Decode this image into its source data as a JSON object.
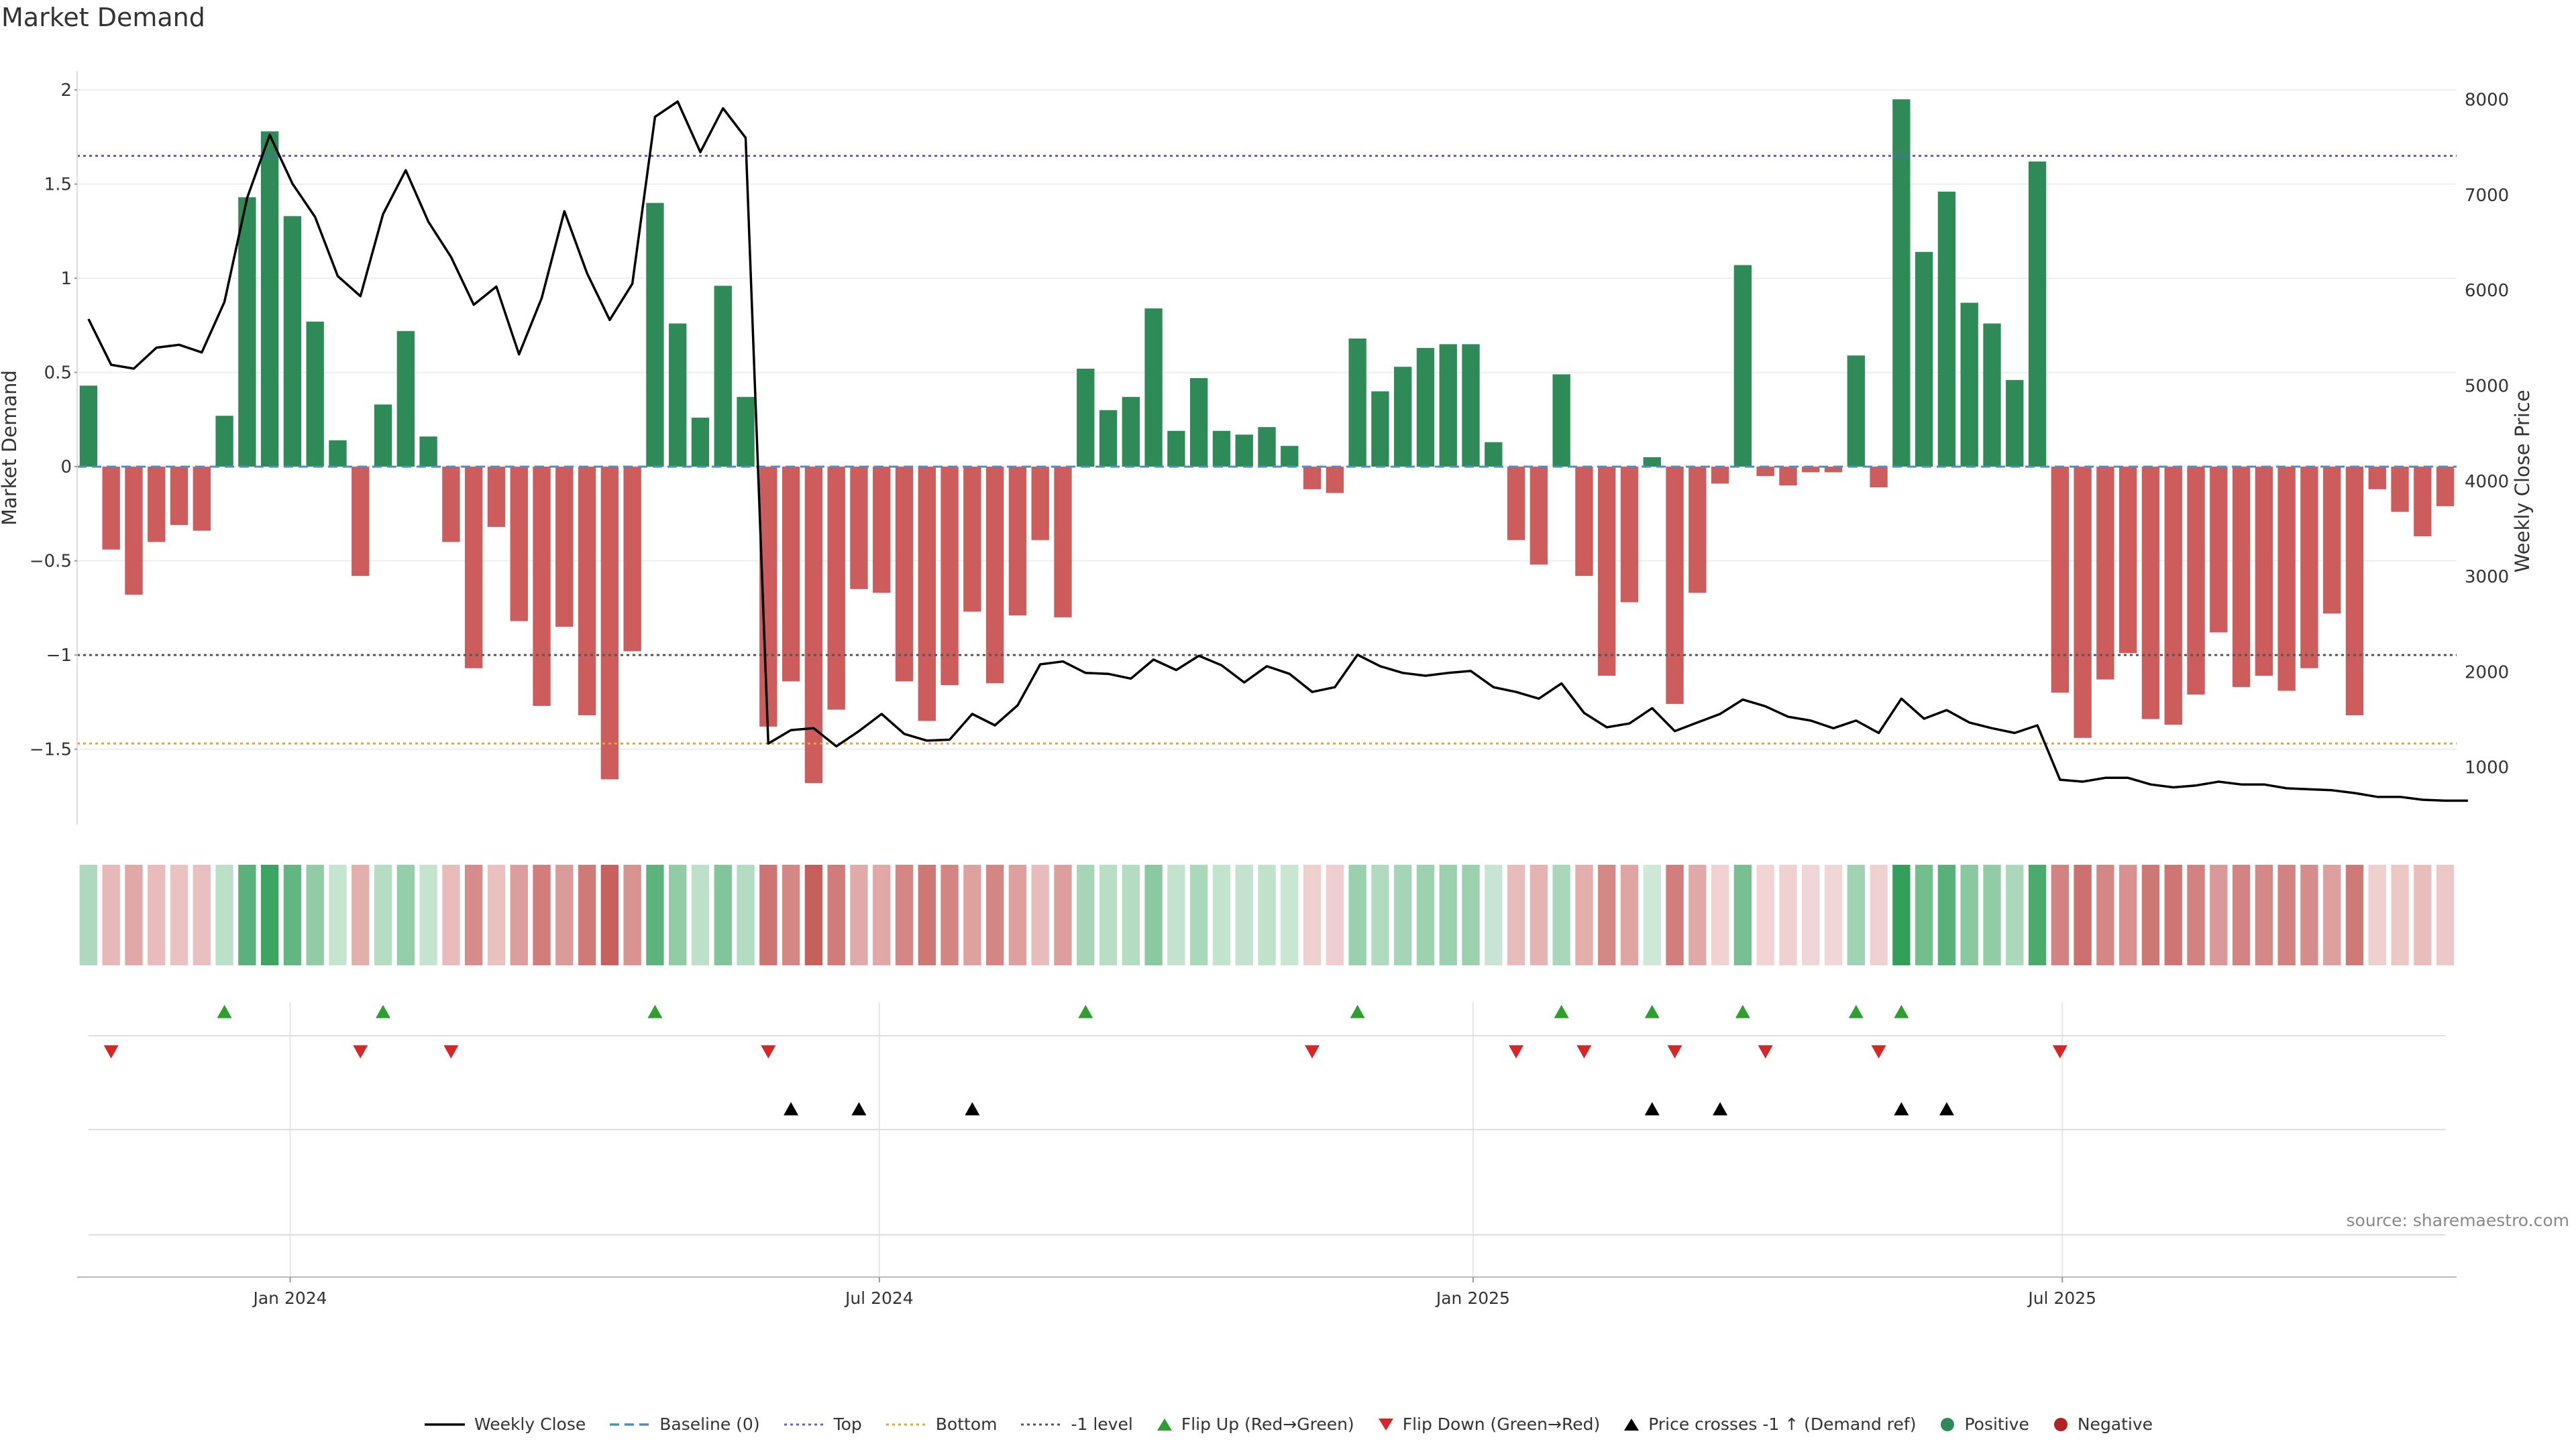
{
  "page_title": "Market Demand",
  "source": "source: sharemaestro.com",
  "colors": {
    "positive": "#2e8b57",
    "negative": "#cd5c5c",
    "price": "#000000",
    "top": "#6a5acd",
    "bottom": "#e6a23c",
    "minus_one": "#555555",
    "baseline": "#4a90c4",
    "flip_up": "#2ca02c",
    "flip_down": "#d62728",
    "cross": "#000000"
  },
  "legend": [
    {
      "key": "weekly_close",
      "label": "Weekly Close",
      "symbol": "line",
      "color": "#000000"
    },
    {
      "key": "baseline",
      "label": "Baseline (0)",
      "symbol": "dash",
      "color": "#4a90c4"
    },
    {
      "key": "top",
      "label": "Top",
      "symbol": "dot",
      "color": "#6a5acd"
    },
    {
      "key": "bottom",
      "label": "Bottom",
      "symbol": "dot",
      "color": "#e6a23c"
    },
    {
      "key": "minus_one",
      "label": "-1 level",
      "symbol": "dot",
      "color": "#555555"
    },
    {
      "key": "flip_up",
      "label": "Flip Up (Red→Green)",
      "symbol": "tri-up",
      "color": "#2ca02c"
    },
    {
      "key": "flip_down",
      "label": "Flip Down (Green→Red)",
      "symbol": "tri-down",
      "color": "#d62728"
    },
    {
      "key": "cross",
      "label": "Price crosses -1 ↑ (Demand ref)",
      "symbol": "tri-up",
      "color": "#000000"
    },
    {
      "key": "positive",
      "label": "Positive",
      "symbol": "circle",
      "color": "#2e8b57"
    },
    {
      "key": "negative",
      "label": "Negative",
      "symbol": "circle",
      "color": "#b22222"
    }
  ],
  "chart_data": {
    "type": "bar",
    "title": "Market Demand",
    "ylabel": "Market Demand",
    "y2label": "Weekly Close Price",
    "ylim": [
      -1.9,
      2.1
    ],
    "y2lim": [
      400,
      8300
    ],
    "yticks": [
      -1.5,
      -1,
      -0.5,
      0,
      0.5,
      1,
      1.5,
      2
    ],
    "ytick_labels": [
      "−1.5",
      "−1",
      "−0.5",
      "0",
      "0.5",
      "1",
      "1.5",
      "2"
    ],
    "y2ticks": [
      1000,
      2000,
      3000,
      4000,
      5000,
      6000,
      7000,
      8000
    ],
    "y2tick_labels": [
      "1000",
      "2000",
      "3000",
      "4000",
      "5000",
      "6000",
      "7000",
      "8000"
    ],
    "levels": {
      "top": 1.65,
      "bottom": -1.47,
      "minus_one": -1.0,
      "baseline": 0
    },
    "xticks": [
      {
        "index": 9.4,
        "label": "Jan 2024"
      },
      {
        "index": 35.4,
        "label": "Jul 2024"
      },
      {
        "index": 61.6,
        "label": "Jan 2025"
      },
      {
        "index": 87.6,
        "label": "Jul 2025"
      }
    ],
    "demand": [
      0.43,
      -0.44,
      -0.68,
      -0.4,
      -0.31,
      -0.34,
      0.27,
      1.43,
      1.78,
      1.33,
      0.77,
      0.14,
      -0.58,
      0.33,
      0.72,
      0.16,
      -0.4,
      -1.07,
      -0.32,
      -0.82,
      -1.27,
      -0.85,
      -1.32,
      -1.66,
      -0.98,
      1.4,
      0.76,
      0.26,
      0.96,
      0.37,
      -1.38,
      -1.14,
      -1.68,
      -1.29,
      -0.65,
      -0.67,
      -1.14,
      -1.35,
      -1.16,
      -0.77,
      -1.15,
      -0.79,
      -0.39,
      -0.8,
      0.52,
      0.3,
      0.37,
      0.84,
      0.19,
      0.47,
      0.19,
      0.17,
      0.21,
      0.11,
      -0.12,
      -0.14,
      0.68,
      0.4,
      0.53,
      0.63,
      0.65,
      0.65,
      0.13,
      -0.39,
      -0.52,
      0.49,
      -0.58,
      -1.11,
      -0.72,
      0.05,
      -1.26,
      -0.67,
      -0.09,
      1.07,
      -0.05,
      -0.1,
      -0.03,
      -0.03,
      0.59,
      -0.11,
      1.95,
      1.14,
      1.46,
      0.87,
      0.76,
      0.46,
      1.62,
      -1.2,
      -1.44,
      -1.13,
      -0.99,
      -1.34,
      -1.37,
      -1.21,
      -0.88,
      -1.17,
      -1.11,
      -1.19,
      -1.07,
      -0.78,
      -1.32,
      -0.12,
      -0.24,
      -0.37,
      -0.21
    ],
    "price": [
      5700,
      5220,
      5180,
      5400,
      5430,
      5350,
      5880,
      6970,
      7630,
      7120,
      6770,
      6150,
      5940,
      6800,
      7260,
      6720,
      6350,
      5850,
      6040,
      5330,
      5920,
      6830,
      6180,
      5690,
      6070,
      7820,
      7980,
      7450,
      7910,
      7600,
      1250,
      1390,
      1410,
      1220,
      1380,
      1560,
      1350,
      1280,
      1290,
      1560,
      1440,
      1650,
      2080,
      2110,
      1990,
      1980,
      1930,
      2130,
      2020,
      2170,
      2070,
      1890,
      2060,
      1980,
      1790,
      1840,
      2180,
      2060,
      1990,
      1960,
      1990,
      2010,
      1840,
      1790,
      1720,
      1880,
      1570,
      1420,
      1460,
      1620,
      1380,
      1470,
      1560,
      1710,
      1640,
      1530,
      1490,
      1410,
      1490,
      1360,
      1720,
      1510,
      1600,
      1470,
      1410,
      1360,
      1440,
      870,
      850,
      890,
      890,
      820,
      790,
      810,
      850,
      820,
      820,
      780,
      770,
      760,
      730,
      690,
      690,
      660,
      650,
      650
    ],
    "strips": {
      "flip_up": [
        6,
        13,
        25,
        44,
        56,
        65,
        69,
        73,
        78,
        80
      ],
      "flip_down": [
        1,
        12,
        16,
        30,
        54,
        63,
        66,
        70,
        74,
        79,
        87
      ],
      "cross": [
        31,
        34,
        39,
        69,
        72,
        80,
        82
      ],
      "row4": []
    }
  }
}
